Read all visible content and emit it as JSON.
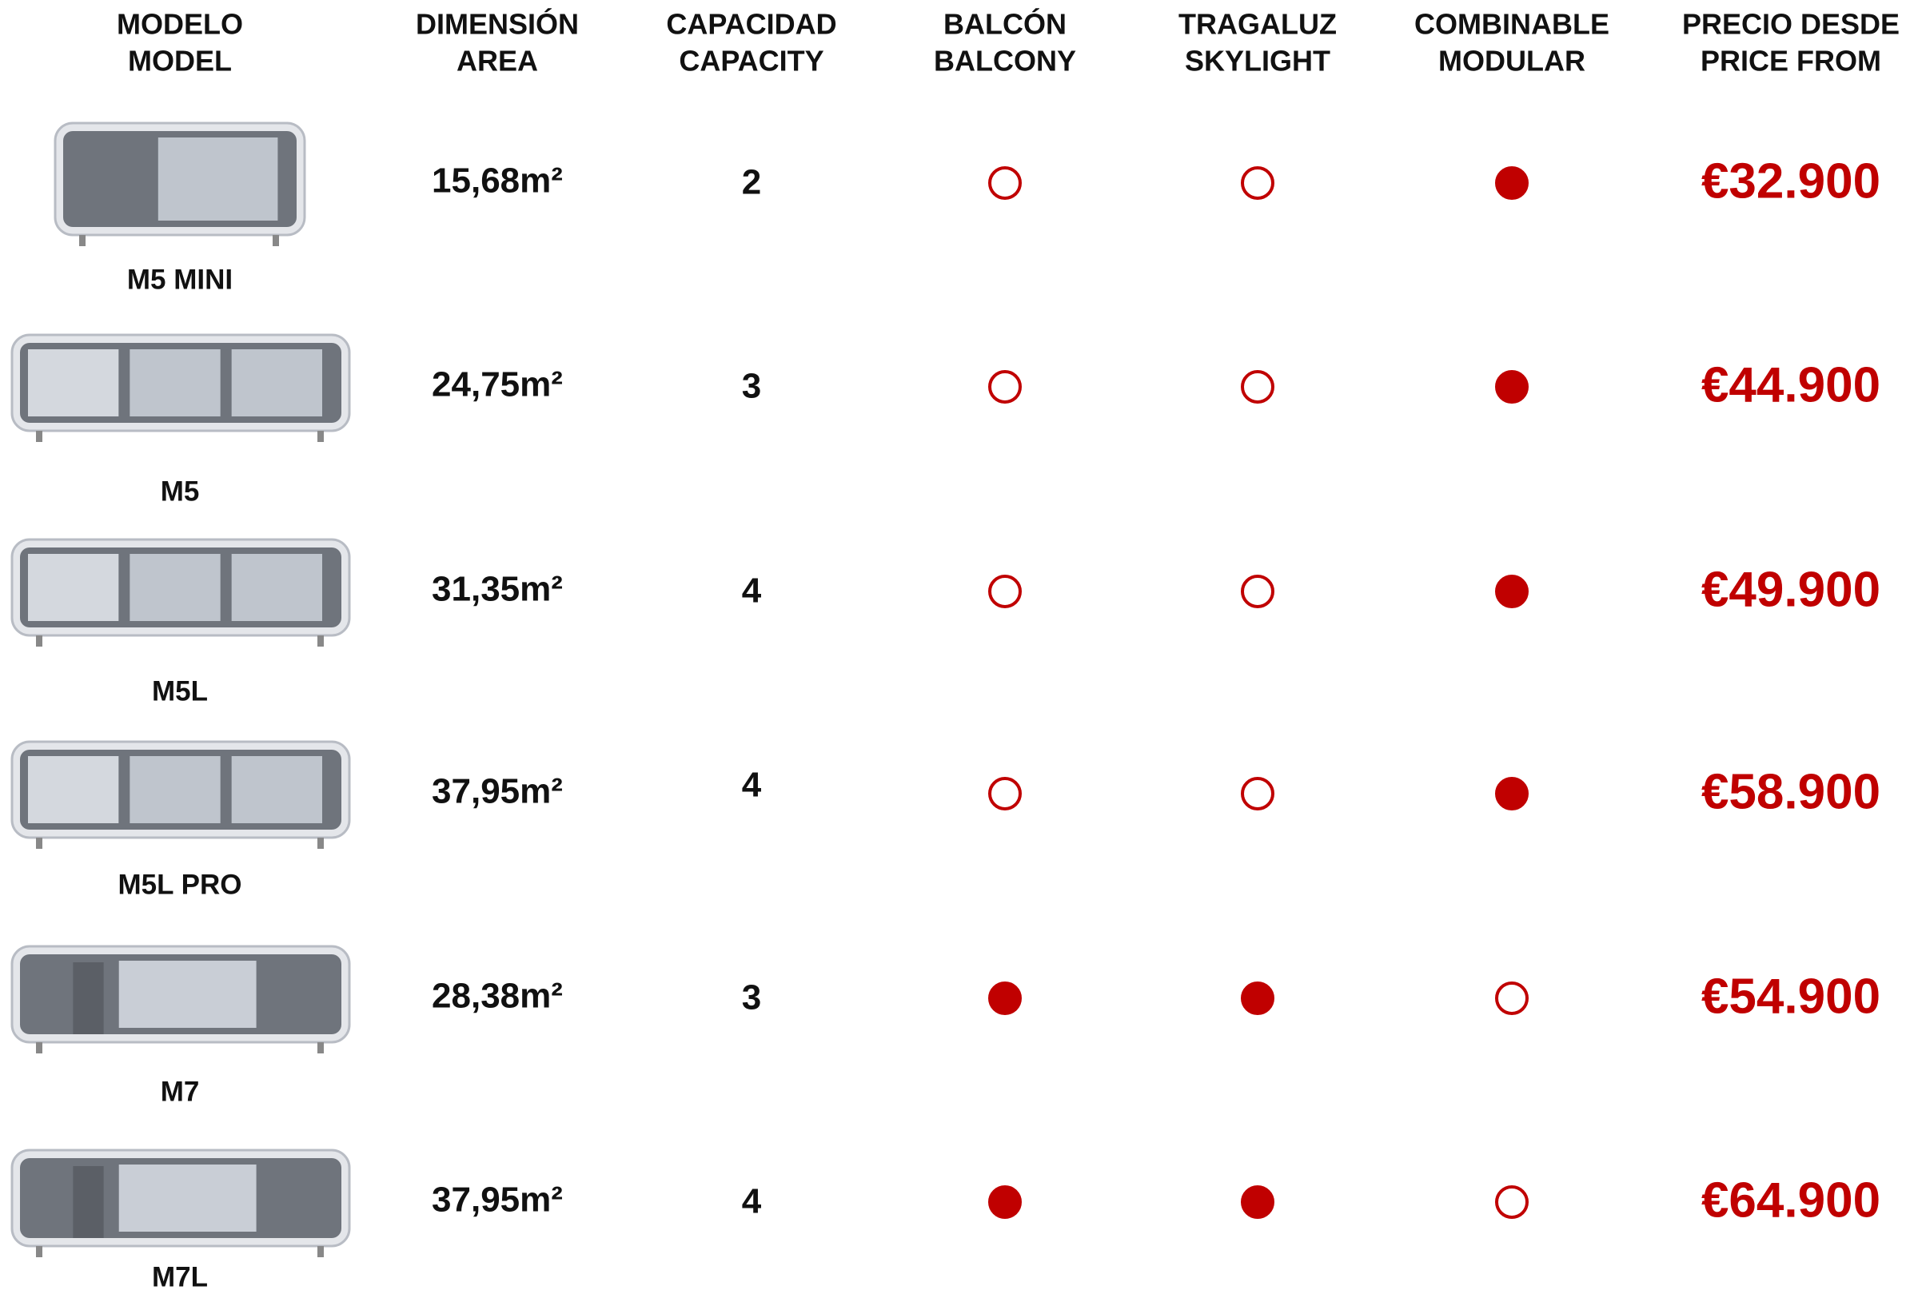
{
  "header": {
    "columns": [
      [
        "MODELO",
        "MODEL"
      ],
      [
        "DIMENSIÓN",
        "AREA"
      ],
      [
        "CAPACIDAD",
        "CAPACITY"
      ],
      [
        "BALCÓN",
        "BALCONY"
      ],
      [
        "TRAGALUZ",
        "SKYLIGHT"
      ],
      [
        "COMBINABLE",
        "MODULAR"
      ],
      [
        "PRECIO DESDE",
        "PRICE FROM"
      ]
    ]
  },
  "table": {
    "rows": [
      {
        "model": "M5 MINI",
        "area": "15,68m²",
        "capacity": 2,
        "balcony": false,
        "skylight": false,
        "modular": true,
        "price": "€32.900"
      },
      {
        "model": "M5",
        "area": "24,75m²",
        "capacity": 3,
        "balcony": false,
        "skylight": false,
        "modular": true,
        "price": "€44.900"
      },
      {
        "model": "M5L",
        "area": "31,35m²",
        "capacity": 4,
        "balcony": false,
        "skylight": false,
        "modular": true,
        "price": "€49.900"
      },
      {
        "model": "M5L PRO",
        "area": "37,95m²",
        "capacity": 4,
        "balcony": false,
        "skylight": false,
        "modular": true,
        "price": "€58.900"
      },
      {
        "model": "M7",
        "area": "28,38m²",
        "capacity": 3,
        "balcony": true,
        "skylight": true,
        "modular": false,
        "price": "€54.900"
      },
      {
        "model": "M7L",
        "area": "37,95m²",
        "capacity": 4,
        "balcony": true,
        "skylight": true,
        "modular": false,
        "price": "€64.900"
      }
    ]
  }
}
